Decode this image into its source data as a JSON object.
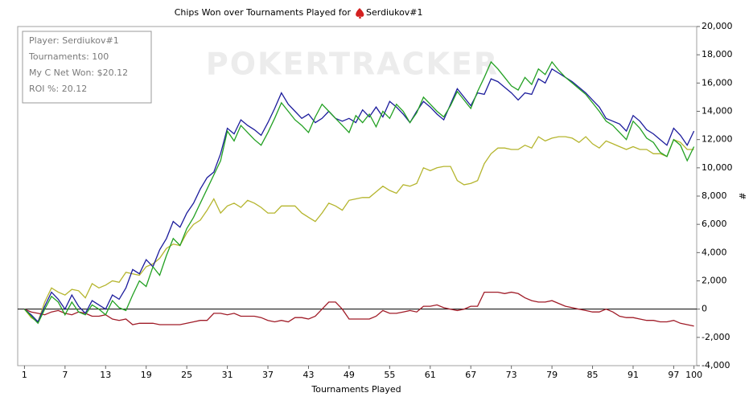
{
  "chart_data": {
    "type": "line",
    "title": "Chips Won over Tournaments Played for",
    "title_name": "Serdiukov#1",
    "watermark": "POKERTRACKER",
    "info": [
      "Player: Serdiukov#1",
      "Tournaments: 100",
      "My C Net Won: $20.12",
      "ROI %: 20.12"
    ],
    "x_label": "Tournaments Played",
    "y_label": "#",
    "x": [
      1,
      2,
      3,
      4,
      5,
      6,
      7,
      8,
      9,
      10,
      11,
      12,
      13,
      14,
      15,
      16,
      17,
      18,
      19,
      20,
      21,
      22,
      23,
      24,
      25,
      26,
      27,
      28,
      29,
      30,
      31,
      32,
      33,
      34,
      35,
      36,
      37,
      38,
      39,
      40,
      41,
      42,
      43,
      44,
      45,
      46,
      47,
      48,
      49,
      50,
      51,
      52,
      53,
      54,
      55,
      56,
      57,
      58,
      59,
      60,
      61,
      62,
      63,
      64,
      65,
      66,
      67,
      68,
      69,
      70,
      71,
      72,
      73,
      74,
      75,
      76,
      77,
      78,
      79,
      80,
      81,
      82,
      83,
      84,
      85,
      86,
      87,
      88,
      89,
      90,
      91,
      92,
      93,
      94,
      95,
      96,
      97,
      98,
      99,
      100
    ],
    "xlim": [
      0,
      100.4
    ],
    "xticks": [
      1,
      7,
      13,
      19,
      25,
      31,
      37,
      43,
      49,
      55,
      61,
      67,
      73,
      79,
      85,
      91,
      97,
      100
    ],
    "ylim": [
      -4000,
      20000
    ],
    "yticks": [
      {
        "value": -4000,
        "label": "-4,000"
      },
      {
        "value": -2000,
        "label": "-2,000"
      },
      0,
      {
        "value": 2000,
        "label": "2,000"
      },
      {
        "value": 4000,
        "label": "4,000"
      },
      {
        "value": 6000,
        "label": "6,000"
      },
      {
        "value": 8000,
        "label": "8,000"
      },
      {
        "value": 10000,
        "label": "10,000"
      },
      {
        "value": 12000,
        "label": "12,000"
      },
      {
        "value": 14000,
        "label": "14,000"
      },
      {
        "value": 16000,
        "label": "16,000"
      },
      {
        "value": 18000,
        "label": "18,000"
      },
      {
        "value": 20000,
        "label": "20,000"
      }
    ],
    "zero_line": true,
    "series": [
      {
        "color": "#b5b52e",
        "values": [
          0,
          -600,
          -900,
          500,
          1500,
          1200,
          1000,
          1400,
          1300,
          800,
          1800,
          1500,
          1700,
          2000,
          1900,
          2600,
          2500,
          2400,
          3000,
          3200,
          3600,
          4300,
          4600,
          4500,
          5400,
          6000,
          6300,
          7000,
          7800,
          6800,
          7300,
          7500,
          7200,
          7700,
          7500,
          7200,
          6800,
          6800,
          7300,
          7300,
          7300,
          6800,
          6500,
          6200,
          6800,
          7500,
          7300,
          7000,
          7700,
          7800,
          7900,
          7900,
          8300,
          8700,
          8400,
          8200,
          8800,
          8700,
          8900,
          10000,
          9800,
          10000,
          10100,
          10100,
          9100,
          8800,
          8900,
          9100,
          10300,
          11000,
          11400,
          11400,
          11300,
          11300,
          11600,
          11400,
          12200,
          11900,
          12100,
          12200,
          12200,
          12100,
          11800,
          12200,
          11700,
          11400,
          11900,
          11700,
          11500,
          11300,
          11500,
          11300,
          11300,
          11000,
          11000,
          10800,
          12000,
          11800,
          11300,
          11300
        ]
      },
      {
        "color": "#a01c28",
        "values": [
          0,
          -200,
          -300,
          -400,
          -200,
          -100,
          -300,
          -400,
          -200,
          -300,
          -500,
          -500,
          -400,
          -700,
          -800,
          -700,
          -1100,
          -1000,
          -1000,
          -1000,
          -1100,
          -1100,
          -1100,
          -1100,
          -1000,
          -900,
          -800,
          -800,
          -300,
          -300,
          -400,
          -300,
          -500,
          -500,
          -500,
          -600,
          -800,
          -900,
          -800,
          -900,
          -600,
          -600,
          -700,
          -500,
          0,
          500,
          500,
          0,
          -700,
          -700,
          -700,
          -700,
          -500,
          -100,
          -300,
          -300,
          -200,
          -100,
          -200,
          200,
          200,
          300,
          100,
          0,
          -100,
          0,
          200,
          200,
          1200,
          1200,
          1200,
          1100,
          1200,
          1100,
          800,
          600,
          500,
          500,
          600,
          400,
          200,
          100,
          0,
          -100,
          -200,
          -200,
          0,
          -200,
          -500,
          -600,
          -600,
          -700,
          -800,
          -800,
          -900,
          -900,
          -800,
          -1000,
          -1100,
          -1200
        ]
      },
      {
        "color": "#1c1c9c",
        "values": [
          0,
          -400,
          -900,
          200,
          1200,
          700,
          0,
          1000,
          200,
          -300,
          600,
          300,
          0,
          1000,
          700,
          1500,
          2800,
          2500,
          3500,
          3000,
          4200,
          5000,
          6200,
          5800,
          6800,
          7500,
          8500,
          9300,
          9700,
          11000,
          12800,
          12400,
          13400,
          13000,
          12700,
          12300,
          13200,
          14200,
          15300,
          14500,
          14000,
          13500,
          13800,
          13200,
          13500,
          14000,
          13500,
          13300,
          13500,
          13200,
          14100,
          13600,
          14300,
          13600,
          14700,
          14300,
          13800,
          13200,
          14000,
          14700,
          14300,
          13800,
          13400,
          14500,
          15600,
          15000,
          14400,
          15300,
          15200,
          16300,
          16100,
          15700,
          15300,
          14800,
          15300,
          15200,
          16300,
          16000,
          17000,
          16700,
          16400,
          16100,
          15700,
          15300,
          14800,
          14300,
          13500,
          13300,
          13100,
          12600,
          13700,
          13300,
          12700,
          12400,
          12000,
          11600,
          12800,
          12300,
          11600,
          12600
        ]
      },
      {
        "color": "#22a022",
        "values": [
          0,
          -500,
          -1000,
          0,
          900,
          500,
          -400,
          500,
          -200,
          -400,
          300,
          0,
          -400,
          600,
          100,
          -100,
          1000,
          2000,
          1600,
          3000,
          2400,
          3800,
          5000,
          4500,
          5700,
          6500,
          7500,
          8500,
          9500,
          10500,
          12600,
          11900,
          13000,
          12500,
          12000,
          11600,
          12500,
          13500,
          14600,
          14000,
          13400,
          13000,
          12500,
          13600,
          14500,
          14000,
          13500,
          13000,
          12500,
          13700,
          13200,
          13800,
          12900,
          14000,
          13500,
          14500,
          14000,
          13200,
          13900,
          15000,
          14500,
          14000,
          13600,
          14400,
          15400,
          14800,
          14200,
          15400,
          16400,
          17500,
          17000,
          16400,
          15800,
          15500,
          16400,
          15900,
          17000,
          16600,
          17500,
          16900,
          16400,
          16000,
          15600,
          15200,
          14600,
          14000,
          13300,
          13000,
          12500,
          12000,
          13300,
          12800,
          12100,
          11800,
          11100,
          10800,
          12000,
          11600,
          10500,
          11500
        ]
      }
    ]
  }
}
